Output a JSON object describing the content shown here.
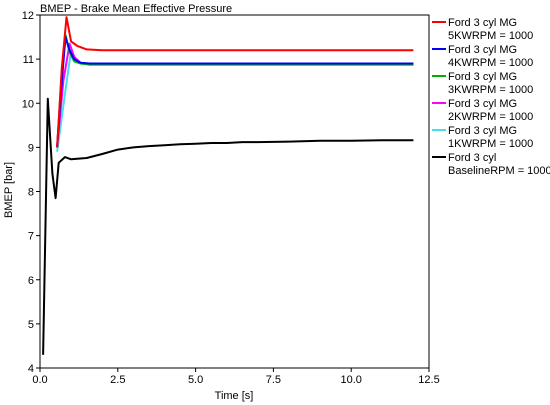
{
  "chart_data": {
    "type": "line",
    "title": "BMEP - Brake Mean Effective Pressure",
    "xlabel": "Time [s]",
    "ylabel": "BMEP [bar]",
    "xlim": [
      0,
      12.5
    ],
    "ylim": [
      4,
      12
    ],
    "xticks": [
      0,
      2.5,
      5,
      7.5,
      10,
      12.5
    ],
    "xtick_labels": [
      "0.0",
      "2.5",
      "5.0",
      "7.5",
      "10.0",
      "12.5"
    ],
    "yticks": [
      4,
      5,
      6,
      7,
      8,
      9,
      10,
      11,
      12
    ],
    "ytick_labels": [
      "4",
      "5",
      "6",
      "7",
      "8",
      "9",
      "10",
      "11",
      "12"
    ],
    "grid": false,
    "legend_position": "right",
    "series": [
      {
        "legend_lines": [
          "Ford 3 cyl MG",
          "5KWRPM = 1000"
        ],
        "color": "#ff0000",
        "x": [
          0.55,
          0.7,
          0.85,
          1.0,
          1.2,
          1.5,
          2.0,
          12.0
        ],
        "y": [
          9.0,
          10.8,
          11.95,
          11.4,
          11.3,
          11.22,
          11.2,
          11.2
        ]
      },
      {
        "legend_lines": [
          "Ford 3 cyl MG",
          "4KWRPM = 1000"
        ],
        "color": "#0000ff",
        "x": [
          0.55,
          0.7,
          0.82,
          0.95,
          1.1,
          1.3,
          1.6,
          2.0,
          12.0
        ],
        "y": [
          9.0,
          10.5,
          11.5,
          11.2,
          11.0,
          10.92,
          10.9,
          10.9,
          10.9
        ]
      },
      {
        "legend_lines": [
          "Ford 3 cyl MG",
          "3KWRPM = 1000"
        ],
        "color": "#00b000",
        "x": [
          0.55,
          0.7,
          0.82,
          0.95,
          1.1,
          1.3,
          1.6,
          2.0,
          12.0
        ],
        "y": [
          9.0,
          10.7,
          11.55,
          11.15,
          10.95,
          10.9,
          10.88,
          10.88,
          10.88
        ]
      },
      {
        "legend_lines": [
          "Ford 3 cyl MG",
          "2KWRPM = 1000"
        ],
        "color": "#ff00ff",
        "x": [
          0.55,
          0.75,
          0.95,
          1.1,
          1.3,
          1.6,
          2.0,
          12.0
        ],
        "y": [
          9.0,
          10.5,
          11.35,
          11.05,
          10.92,
          10.88,
          10.88,
          10.88
        ]
      },
      {
        "legend_lines": [
          "Ford 3 cyl MG",
          "1KWRPM = 1000"
        ],
        "color": "#40e0f0",
        "x": [
          0.55,
          0.8,
          1.0,
          1.15,
          1.3,
          1.6,
          2.0,
          12.0
        ],
        "y": [
          8.9,
          10.2,
          11.2,
          11.0,
          10.9,
          10.87,
          10.87,
          10.87
        ]
      },
      {
        "legend_lines": [
          "Ford 3 cyl",
          "BaselineRPM = 1000"
        ],
        "color": "#000000",
        "x": [
          0.1,
          0.25,
          0.4,
          0.5,
          0.6,
          0.8,
          1.0,
          1.5,
          2.0,
          2.5,
          3.0,
          3.5,
          4.0,
          4.5,
          5.0,
          5.5,
          6.0,
          6.5,
          7.0,
          8.0,
          9.0,
          10.0,
          11.0,
          12.0
        ],
        "y": [
          4.3,
          10.1,
          8.4,
          7.85,
          8.65,
          8.78,
          8.73,
          8.76,
          8.85,
          8.95,
          9.0,
          9.03,
          9.05,
          9.07,
          9.08,
          9.1,
          9.1,
          9.12,
          9.12,
          9.13,
          9.15,
          9.15,
          9.16,
          9.16
        ]
      }
    ]
  }
}
